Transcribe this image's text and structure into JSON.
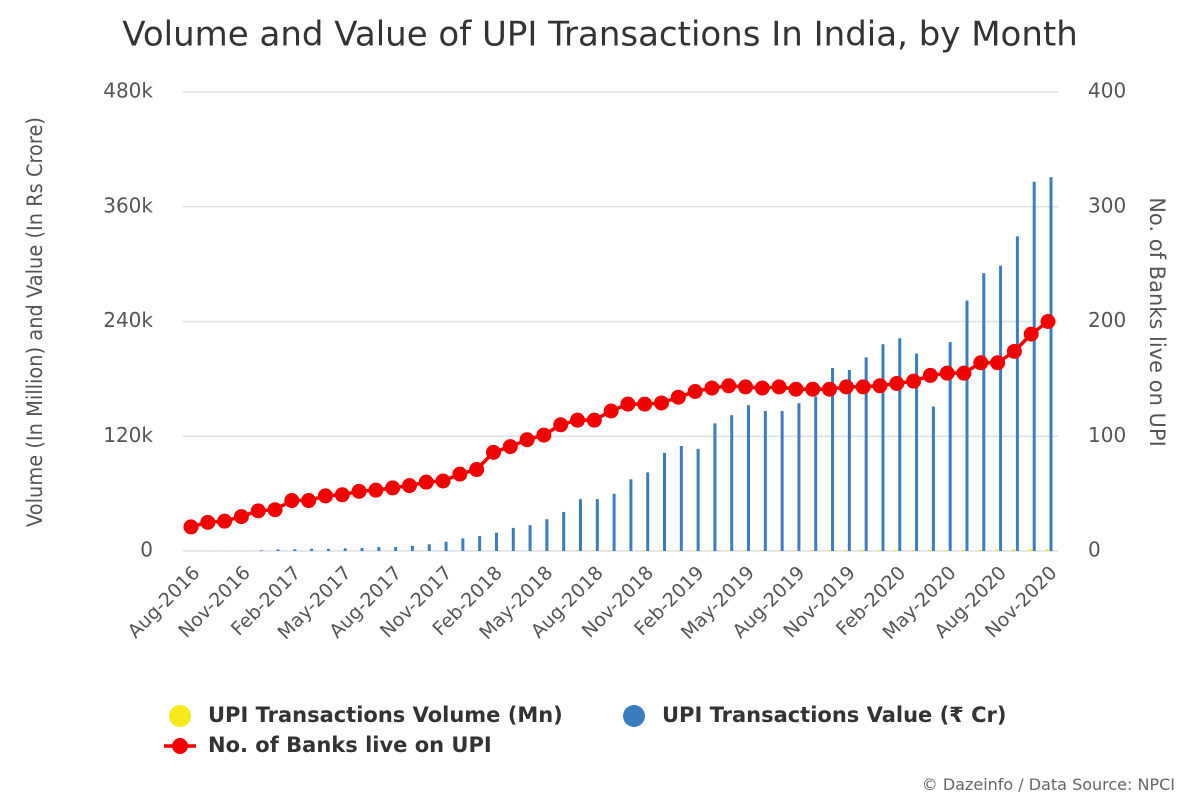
{
  "chart_data": {
    "type": "bar_line",
    "title": "Volume and Value of UPI Transactions In India, by Month",
    "y_label": "Volume (In Million) and Value (In Rs Crore)",
    "y2_label": "No. of Banks live on UPI",
    "source": "© Dazeinfo / Data Source: NPCI",
    "categories": [
      "Aug-2016",
      null,
      null,
      "Nov-2016",
      null,
      null,
      "Feb-2017",
      null,
      null,
      "May-2017",
      null,
      null,
      "Aug-2017",
      null,
      null,
      "Nov-2017",
      null,
      null,
      "Feb-2018",
      null,
      null,
      "May-2018",
      null,
      null,
      "Aug-2018",
      null,
      null,
      "Nov-2018",
      null,
      null,
      "Feb-2019",
      null,
      null,
      "May-2019",
      null,
      null,
      "Aug-2019",
      null,
      null,
      "Nov-2019",
      null,
      null,
      "Feb-2020",
      null,
      null,
      "May-2020",
      null,
      null,
      "Aug-2020",
      null,
      null,
      "Nov-2020"
    ],
    "series": [
      {
        "name": "UPI Transactions Volume (Mn)",
        "color": "#f7e81a",
        "kind": "bar",
        "axis": "y",
        "values": [
          0.09,
          0.1,
          0.1,
          0.29,
          2,
          4.2,
          4.2,
          6.2,
          7.2,
          9.4,
          10.4,
          11.4,
          16.8,
          31,
          77,
          105,
          145,
          151,
          171,
          178,
          190,
          189,
          246,
          274,
          312,
          406,
          482,
          525,
          620,
          672,
          674,
          800,
          782,
          733,
          754,
          822,
          918,
          955,
          1149,
          1219,
          1309,
          1305,
          1325,
          1247,
          999,
          1235,
          1337,
          1497,
          1618,
          1800,
          2073,
          2210
        ]
      },
      {
        "name": "UPI Transactions Value (₹ Cr)",
        "color": "#3a7ebf",
        "kind": "bar",
        "axis": "y",
        "values": [
          3,
          32,
          49,
          90,
          707,
          1696,
          1900,
          2425,
          2271,
          2797,
          3098,
          4158,
          4157,
          5325,
          7058,
          9669,
          13144,
          15571,
          19148,
          24172,
          27022,
          33288,
          40834,
          54212,
          54298,
          59835,
          74978,
          82232,
          102594,
          109932,
          106737,
          133461,
          142034,
          152449,
          146387,
          146386,
          154506,
          161456,
          191359,
          189229,
          202521,
          216243,
          222517,
          206462,
          151141,
          218392,
          261835,
          290538,
          298308,
          329027,
          386107,
          390999
        ]
      },
      {
        "name": "No. of Banks live on UPI",
        "color": "#f30000",
        "kind": "line",
        "axis": "y2",
        "values": [
          21,
          25,
          26,
          30,
          35,
          36,
          44,
          44,
          48,
          49,
          52,
          53,
          55,
          57,
          60,
          61,
          67,
          71,
          86,
          91,
          97,
          101,
          110,
          114,
          114,
          122,
          128,
          128,
          129,
          134,
          139,
          142,
          144,
          143,
          142,
          143,
          141,
          141,
          141,
          143,
          143,
          144,
          146,
          148,
          153,
          155,
          155,
          164,
          164,
          174,
          189,
          200
        ]
      }
    ],
    "ylim": [
      0,
      480000
    ],
    "yticks": [
      0,
      {
        "value": 120000,
        "label": "120k"
      },
      {
        "value": 240000,
        "label": "240k"
      },
      {
        "value": 360000,
        "label": "360k"
      },
      {
        "value": 480000,
        "label": "480k"
      }
    ],
    "y2lim": [
      0,
      400
    ],
    "y2ticks": [
      0,
      100,
      200,
      300,
      400
    ],
    "grid": true
  }
}
